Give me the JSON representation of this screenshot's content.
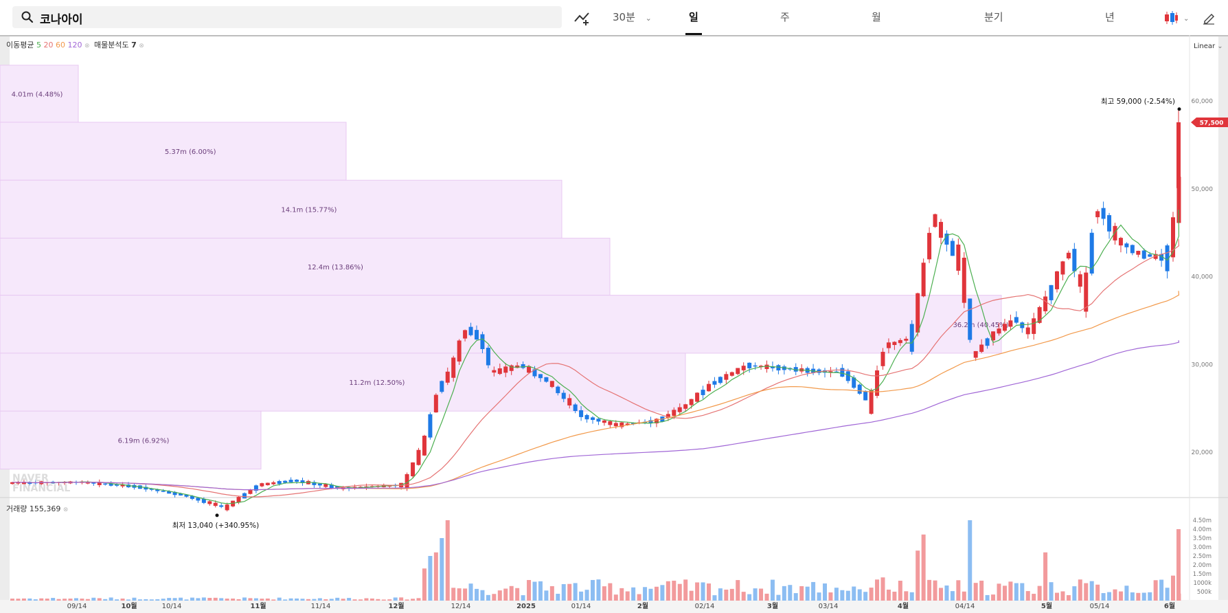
{
  "search": {
    "value": "코나아이"
  },
  "toolbar": {
    "interval": "30분",
    "tabs": [
      "일",
      "주",
      "월",
      "분기",
      "년"
    ],
    "active_tab": "일"
  },
  "indicators": {
    "ma_label": "이동평균",
    "ma_periods": [
      "5",
      "20",
      "60",
      "120"
    ],
    "ma_colors": [
      "#4caf50",
      "#e57373",
      "#f2994a",
      "#a066d6"
    ],
    "vp_label": "매물분석도",
    "vp_value": "7"
  },
  "scale_label": "Linear",
  "high_label": {
    "prefix": "최고",
    "value": "59,000 (-2.54%)"
  },
  "low_label": {
    "prefix": "최저",
    "value": "13,040 (+340.95%)"
  },
  "current_price": "57,500",
  "watermark": [
    "NAVER",
    "FINANCIAL"
  ],
  "volume_label": {
    "prefix": "거래량",
    "value": "155,369"
  },
  "colors": {
    "up": "#e0353b",
    "down": "#1e7ae6",
    "vp": "#f6e8fb",
    "vp_border": "#e8c9f2"
  },
  "chart_data": {
    "type": "candlestick",
    "y_ticks": [
      "60,000",
      "50,000",
      "40,000",
      "30,000",
      "20,000"
    ],
    "y_tick_values": [
      60000,
      50000,
      40000,
      30000,
      20000
    ],
    "ylim": [
      13000,
      61000
    ],
    "volume_ticks": [
      "4.50m",
      "4.00m",
      "3.50m",
      "3.00m",
      "2.50m",
      "2.00m",
      "1.50m",
      "1000k",
      "500k"
    ],
    "volume_tick_values": [
      4500000,
      4000000,
      3500000,
      3000000,
      2500000,
      2000000,
      1500000,
      1000000,
      500000
    ],
    "x_ticks": [
      "09/14",
      "10월",
      "10/14",
      "11월",
      "11/14",
      "12월",
      "12/14",
      "2025",
      "01/14",
      "2월",
      "02/14",
      "3월",
      "03/14",
      "4월",
      "04/14",
      "5월",
      "05/14",
      "6월"
    ],
    "volume_profile": [
      {
        "label": "4.01m (4.48%)",
        "price_low": 57500,
        "price_high": 64000,
        "share": 4.48
      },
      {
        "label": "5.37m (6.00%)",
        "price_low": 50900,
        "price_high": 57500,
        "share": 6.0
      },
      {
        "label": "14.1m (15.77%)",
        "price_low": 44300,
        "price_high": 50900,
        "share": 15.77
      },
      {
        "label": "12.4m (13.86%)",
        "price_low": 37800,
        "price_high": 44300,
        "share": 13.86
      },
      {
        "label": "36.2m (40.45%)",
        "price_low": 31200,
        "price_high": 37800,
        "share": 40.45
      },
      {
        "label": "11.2m (12.50%)",
        "price_low": 24600,
        "price_high": 31200,
        "share": 12.5
      },
      {
        "label": "6.19m (6.92%)",
        "price_low": 18000,
        "price_high": 24600,
        "share": 6.92
      }
    ],
    "key_points": [
      {
        "date": "11월 초",
        "price": 13040,
        "label": "최저"
      },
      {
        "date": "6월",
        "price": 59000,
        "label": "최고"
      }
    ]
  }
}
